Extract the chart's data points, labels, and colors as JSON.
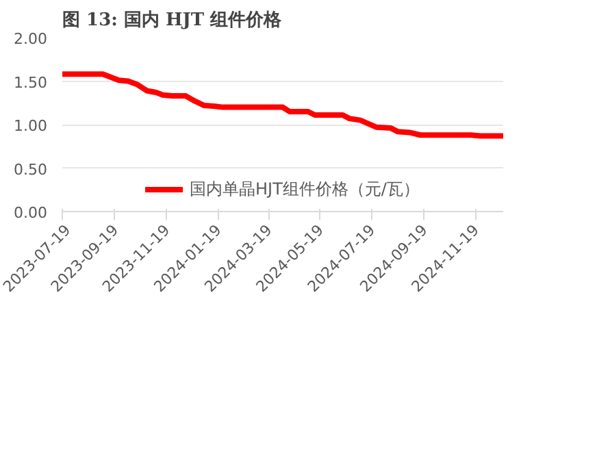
{
  "chart_data": {
    "type": "line",
    "title": "图 13:  国内 HJT 组件价格",
    "x": [
      "2023-07-19",
      "2023-09-05",
      "2023-09-24",
      "2023-10-05",
      "2023-10-16",
      "2023-10-27",
      "2023-11-07",
      "2023-11-15",
      "2023-11-26",
      "2023-12-12",
      "2023-12-23",
      "2024-01-03",
      "2024-01-16",
      "2024-01-25",
      "2024-04-05",
      "2024-04-13",
      "2024-05-05",
      "2024-05-13",
      "2024-06-15",
      "2024-06-23",
      "2024-07-06",
      "2024-07-25",
      "2024-08-11",
      "2024-08-19",
      "2024-09-02",
      "2024-09-15",
      "2024-11-14",
      "2024-11-25",
      "2024-12-22"
    ],
    "series": [
      {
        "name": "国内单晶HJT组件价格（元/瓦）",
        "color": "#ff0000",
        "values": [
          1.58,
          1.58,
          1.51,
          1.5,
          1.46,
          1.39,
          1.37,
          1.34,
          1.33,
          1.33,
          1.27,
          1.22,
          1.21,
          1.2,
          1.2,
          1.15,
          1.15,
          1.11,
          1.11,
          1.07,
          1.05,
          0.97,
          0.96,
          0.92,
          0.91,
          0.88,
          0.88,
          0.87,
          0.87
        ]
      }
    ],
    "xlim": [
      "2023-07-19",
      "2024-12-22"
    ],
    "xticks": [
      "2023-07-19",
      "2023-09-19",
      "2023-11-19",
      "2024-01-19",
      "2024-03-19",
      "2024-05-19",
      "2024-07-19",
      "2024-09-19",
      "2024-11-19"
    ],
    "ylim": [
      0,
      2
    ],
    "yticks": [
      {
        "value": 0,
        "label": "0.00"
      },
      {
        "value": 0.5,
        "label": "0.50"
      },
      {
        "value": 1,
        "label": "1.00"
      },
      {
        "value": 1.5,
        "label": "1.50"
      },
      {
        "value": 2,
        "label": "2.00"
      }
    ],
    "grid": "y",
    "legend": "bottom",
    "marker": "none",
    "line_style": "solid"
  }
}
